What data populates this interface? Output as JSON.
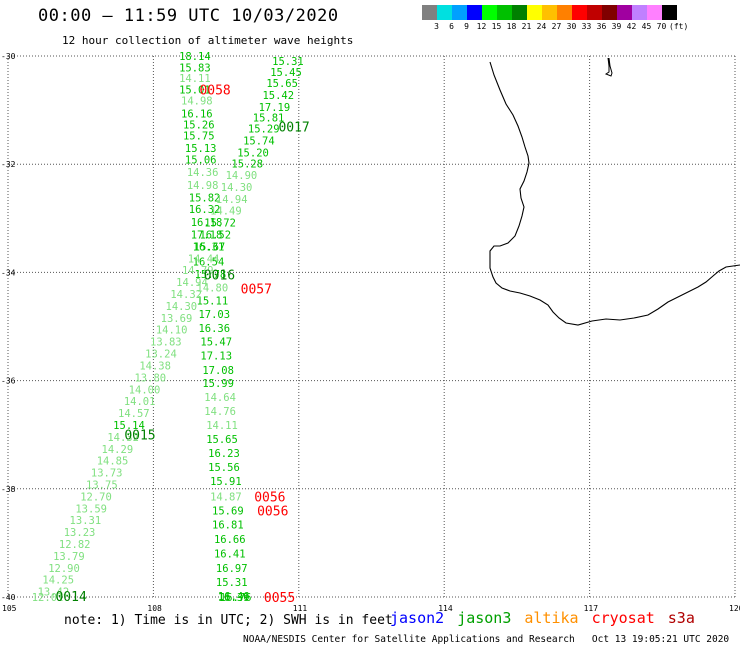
{
  "header": {
    "title": "00:00 – 11:59 UTC 10/03/2020",
    "subtitle": "12 hour collection of altimeter wave heights"
  },
  "legend": {
    "colors": [
      "#808080",
      "#00e0e0",
      "#00a0ff",
      "#0000ff",
      "#00ff00",
      "#00c000",
      "#008000",
      "#ffff00",
      "#ffc000",
      "#ff8000",
      "#ff0000",
      "#c00000",
      "#800000",
      "#a000a0",
      "#c080ff",
      "#ff80ff",
      "#000000"
    ],
    "labels": [
      "3",
      "6",
      "9",
      "12",
      "15",
      "18",
      "21",
      "24",
      "27",
      "30",
      "33",
      "36",
      "39",
      "42",
      "45",
      "70",
      "(ft)"
    ]
  },
  "axes": {
    "lat_labels": [
      "-30",
      "-32",
      "-34",
      "-36",
      "-38",
      "-40"
    ],
    "lon_labels": [
      "105",
      "108",
      "111",
      "114",
      "117",
      "120"
    ]
  },
  "chart_data": {
    "type": "scatter",
    "title": "12 hour collection of altimeter wave heights",
    "xlabel": "",
    "ylabel": "",
    "xlim": [
      105,
      120
    ],
    "ylim": [
      -40,
      -30
    ],
    "grid": true,
    "series": [
      {
        "name": "jason3",
        "color": "#00c000",
        "points": [
          {
            "lon": 108.53,
            "lat": -30.0,
            "swh": "18.14"
          },
          {
            "lon": 108.53,
            "lat": -30.21,
            "swh": "15.83"
          },
          {
            "lon": 108.53,
            "lat": -30.41,
            "swh": "14.11"
          },
          {
            "lon": 108.53,
            "lat": -30.62,
            "swh": "15.01"
          },
          {
            "lon": 108.57,
            "lat": -30.82,
            "swh": "14.98"
          },
          {
            "lon": 108.57,
            "lat": -31.06,
            "swh": "16.16"
          },
          {
            "lon": 108.61,
            "lat": -31.27,
            "swh": "15.26"
          },
          {
            "lon": 108.61,
            "lat": -31.47,
            "swh": "15.75"
          },
          {
            "lon": 108.65,
            "lat": -31.7,
            "swh": "15.13"
          },
          {
            "lon": 108.65,
            "lat": -31.91,
            "swh": "15.06"
          },
          {
            "lon": 108.69,
            "lat": -32.14,
            "swh": "14.36"
          },
          {
            "lon": 108.69,
            "lat": -32.38,
            "swh": "14.98"
          },
          {
            "lon": 108.73,
            "lat": -32.62,
            "swh": "15.82"
          },
          {
            "lon": 108.73,
            "lat": -32.83,
            "swh": "16.32"
          },
          {
            "lon": 108.77,
            "lat": -33.07,
            "swh": "16.18"
          },
          {
            "lon": 108.77,
            "lat": -33.3,
            "swh": "17.18"
          },
          {
            "lon": 108.81,
            "lat": -33.52,
            "swh": "16.31"
          },
          {
            "lon": 108.81,
            "lat": -33.8,
            "swh": "16.54"
          },
          {
            "lon": 108.85,
            "lat": -34.03,
            "swh": "15.78"
          },
          {
            "lon": 108.89,
            "lat": -34.28,
            "swh": "14.80"
          },
          {
            "lon": 108.89,
            "lat": -34.52,
            "swh": "15.11"
          },
          {
            "lon": 108.93,
            "lat": -34.77,
            "swh": "17.03"
          },
          {
            "lon": 108.93,
            "lat": -35.03,
            "swh": "16.36"
          },
          {
            "lon": 108.97,
            "lat": -35.28,
            "swh": "15.47"
          },
          {
            "lon": 108.97,
            "lat": -35.54,
            "swh": "17.13"
          },
          {
            "lon": 109.01,
            "lat": -35.8,
            "swh": "17.08"
          },
          {
            "lon": 109.01,
            "lat": -36.04,
            "swh": "15.99"
          },
          {
            "lon": 109.05,
            "lat": -36.3,
            "swh": "14.64"
          },
          {
            "lon": 109.05,
            "lat": -36.56,
            "swh": "14.76"
          },
          {
            "lon": 109.09,
            "lat": -36.82,
            "swh": "14.11"
          },
          {
            "lon": 109.09,
            "lat": -37.08,
            "swh": "15.65"
          },
          {
            "lon": 109.13,
            "lat": -37.34,
            "swh": "16.23"
          },
          {
            "lon": 109.13,
            "lat": -37.6,
            "swh": "15.56"
          },
          {
            "lon": 109.17,
            "lat": -37.86,
            "swh": "15.91"
          },
          {
            "lon": 109.17,
            "lat": -38.14,
            "swh": "14.87"
          },
          {
            "lon": 109.21,
            "lat": -38.4,
            "swh": "15.69"
          },
          {
            "lon": 109.21,
            "lat": -38.66,
            "swh": "16.81"
          },
          {
            "lon": 109.25,
            "lat": -38.93,
            "swh": "16.66"
          },
          {
            "lon": 109.25,
            "lat": -39.2,
            "swh": "16.41"
          },
          {
            "lon": 109.29,
            "lat": -39.46,
            "swh": "16.97"
          },
          {
            "lon": 109.29,
            "lat": -39.72,
            "swh": "15.31"
          },
          {
            "lon": 109.33,
            "lat": -39.98,
            "swh": "16.46"
          },
          {
            "lon": 109.33,
            "lat": -40.0,
            "swh": "16.39"
          },
          {
            "lon": 109.37,
            "lat": -40.0,
            "swh": "16.76"
          },
          {
            "lon": 110.45,
            "lat": -30.09,
            "swh": "15.31"
          },
          {
            "lon": 110.41,
            "lat": -30.3,
            "swh": "15.45"
          },
          {
            "lon": 110.33,
            "lat": -30.5,
            "swh": "15.65"
          },
          {
            "lon": 110.25,
            "lat": -30.72,
            "swh": "15.42"
          },
          {
            "lon": 110.17,
            "lat": -30.94,
            "swh": "17.19"
          },
          {
            "lon": 110.05,
            "lat": -31.14,
            "swh": "15.81"
          },
          {
            "lon": 109.95,
            "lat": -31.34,
            "swh": "15.29"
          },
          {
            "lon": 109.85,
            "lat": -31.56,
            "swh": "15.74"
          },
          {
            "lon": 109.73,
            "lat": -31.78,
            "swh": "15.20"
          },
          {
            "lon": 109.61,
            "lat": -31.99,
            "swh": "15.28"
          },
          {
            "lon": 109.49,
            "lat": -32.2,
            "swh": "14.90"
          },
          {
            "lon": 109.39,
            "lat": -32.42,
            "swh": "14.30"
          },
          {
            "lon": 109.29,
            "lat": -32.64,
            "swh": "14.94"
          },
          {
            "lon": 109.17,
            "lat": -32.86,
            "swh": "14.49"
          },
          {
            "lon": 109.05,
            "lat": -33.08,
            "swh": "15.72"
          },
          {
            "lon": 108.95,
            "lat": -33.3,
            "swh": "16.52"
          },
          {
            "lon": 108.83,
            "lat": -33.52,
            "swh": "15.67"
          },
          {
            "lon": 108.71,
            "lat": -33.74,
            "swh": "14.44"
          },
          {
            "lon": 108.59,
            "lat": -33.96,
            "swh": "14.79"
          },
          {
            "lon": 108.47,
            "lat": -34.18,
            "swh": "14.94"
          },
          {
            "lon": 108.35,
            "lat": -34.4,
            "swh": "14.32"
          },
          {
            "lon": 108.25,
            "lat": -34.62,
            "swh": "14.30"
          },
          {
            "lon": 108.15,
            "lat": -34.84,
            "swh": "13.69"
          },
          {
            "lon": 108.05,
            "lat": -35.06,
            "swh": "14.10"
          },
          {
            "lon": 107.93,
            "lat": -35.28,
            "swh": "13.83"
          },
          {
            "lon": 107.83,
            "lat": -35.5,
            "swh": "13.24"
          },
          {
            "lon": 107.71,
            "lat": -35.72,
            "swh": "14.38"
          },
          {
            "lon": 107.61,
            "lat": -35.94,
            "swh": "13.80"
          },
          {
            "lon": 107.49,
            "lat": -36.16,
            "swh": "14.00"
          },
          {
            "lon": 107.39,
            "lat": -36.38,
            "swh": "14.01"
          },
          {
            "lon": 107.27,
            "lat": -36.6,
            "swh": "14.57"
          },
          {
            "lon": 107.17,
            "lat": -36.82,
            "swh": "15.14"
          },
          {
            "lon": 107.05,
            "lat": -37.04,
            "swh": "14.32"
          },
          {
            "lon": 106.93,
            "lat": -37.26,
            "swh": "14.29"
          },
          {
            "lon": 106.83,
            "lat": -37.48,
            "swh": "14.85"
          },
          {
            "lon": 106.71,
            "lat": -37.7,
            "swh": "13.73"
          },
          {
            "lon": 106.61,
            "lat": -37.92,
            "swh": "13.75"
          },
          {
            "lon": 106.49,
            "lat": -38.14,
            "swh": "12.70"
          },
          {
            "lon": 106.39,
            "lat": -38.36,
            "swh": "13.59"
          },
          {
            "lon": 106.27,
            "lat": -38.58,
            "swh": "13.31"
          },
          {
            "lon": 106.15,
            "lat": -38.8,
            "swh": "13.23"
          },
          {
            "lon": 106.05,
            "lat": -39.02,
            "swh": "12.82"
          },
          {
            "lon": 105.93,
            "lat": -39.24,
            "swh": "13.79"
          },
          {
            "lon": 105.83,
            "lat": -39.46,
            "swh": "12.90"
          },
          {
            "lon": 105.71,
            "lat": -39.68,
            "swh": "14.25"
          },
          {
            "lon": 105.61,
            "lat": -39.9,
            "swh": "13.42"
          },
          {
            "lon": 105.49,
            "lat": -40.0,
            "swh": "12.01"
          }
        ]
      }
    ],
    "pass_labels": [
      {
        "text": "0058",
        "lon": 108.95,
        "lat": -30.62,
        "color": "#ff0000"
      },
      {
        "text": "0017",
        "lon": 110.58,
        "lat": -31.3,
        "color": "#008000"
      },
      {
        "text": "0016",
        "lon": 109.04,
        "lat": -34.04,
        "color": "#008000"
      },
      {
        "text": "0057",
        "lon": 109.8,
        "lat": -34.3,
        "color": "#ff0000"
      },
      {
        "text": "0015",
        "lon": 107.4,
        "lat": -37.0,
        "color": "#008000"
      },
      {
        "text": "0056",
        "lon": 110.08,
        "lat": -38.14,
        "color": "#ff0000"
      },
      {
        "text": "0056",
        "lon": 110.14,
        "lat": -38.4,
        "color": "#ff0000"
      },
      {
        "text": "0014",
        "lon": 105.98,
        "lat": -39.98,
        "color": "#008000"
      },
      {
        "text": "0055",
        "lon": 110.28,
        "lat": -40.0,
        "color": "#ff0000"
      }
    ]
  },
  "note": "note: 1) Time is in UTC; 2) SWH is in feet",
  "satellites": [
    {
      "label": "jason2",
      "color": "#0000ff"
    },
    {
      "label": "jason3",
      "color": "#00a000"
    },
    {
      "label": "altika",
      "color": "#ff9000"
    },
    {
      "label": "cryosat",
      "color": "#ff0000"
    },
    {
      "label": "s3a",
      "color": "#b00000"
    }
  ],
  "footer": "NOAA/NESDIS Center for Satellite Applications and Research   Oct 13 19:05:21 UTC 2020"
}
